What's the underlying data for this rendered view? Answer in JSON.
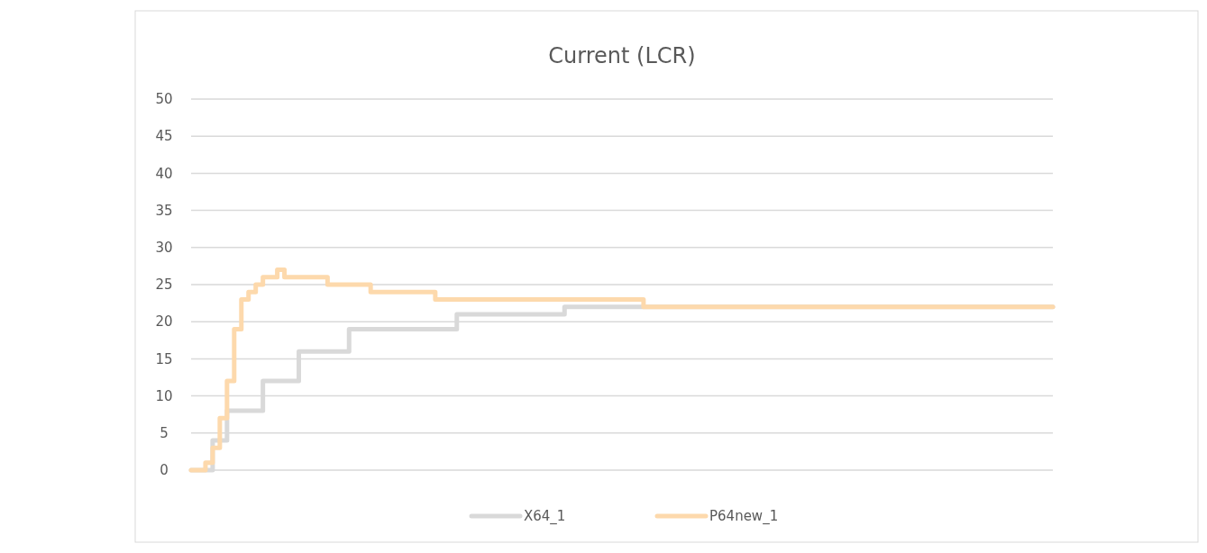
{
  "chart_data": {
    "type": "step",
    "title": "Current (LCR)",
    "categories": [
      null,
      null,
      null,
      null,
      null,
      null,
      null,
      null,
      null,
      null,
      null,
      null,
      null,
      null,
      null,
      null,
      null,
      null,
      null,
      null,
      null,
      null,
      null,
      null,
      null,
      null,
      null,
      null,
      null,
      null,
      null,
      null,
      null,
      null,
      null,
      null,
      null,
      null,
      null,
      null,
      null,
      null,
      null,
      null,
      null,
      null,
      null,
      null,
      null,
      null,
      null,
      null,
      null,
      null,
      null,
      null,
      null,
      null,
      null,
      null,
      null,
      null,
      null,
      null,
      null,
      null,
      null,
      null,
      null,
      null,
      null,
      null,
      null,
      null,
      null,
      null,
      null,
      null,
      null,
      null,
      null,
      null,
      null,
      null,
      null,
      null,
      null,
      null,
      null,
      null,
      null,
      null,
      null,
      null,
      null,
      null,
      null,
      null,
      null,
      null,
      null,
      null,
      null,
      null,
      null,
      null,
      null,
      null,
      null,
      null,
      null,
      null,
      null,
      null,
      null,
      null,
      null,
      null,
      null,
      null,
      null
    ],
    "series": [
      {
        "name": "X64_1",
        "color": "#d9d9d9",
        "values": [
          0,
          0,
          0,
          4,
          4,
          8,
          8,
          8,
          8,
          8,
          12,
          12,
          12,
          12,
          12,
          16,
          16,
          16,
          16,
          16,
          16,
          16,
          19,
          19,
          19,
          19,
          19,
          19,
          19,
          19,
          19,
          19,
          19,
          19,
          19,
          19,
          19,
          21,
          21,
          21,
          21,
          21,
          21,
          21,
          21,
          21,
          21,
          21,
          21,
          21,
          21,
          21,
          22,
          22,
          22,
          22,
          22,
          22,
          22,
          22,
          22,
          22,
          22,
          22,
          22,
          22,
          22,
          22,
          22,
          22,
          22,
          22,
          22,
          22,
          22,
          22,
          22,
          22,
          22,
          22,
          22,
          22,
          22,
          22,
          22,
          22,
          22,
          22,
          22,
          22,
          22,
          22,
          22,
          22,
          22,
          22,
          22,
          22,
          22,
          22,
          22,
          22,
          22,
          22,
          22,
          22,
          22,
          22,
          22,
          22,
          22,
          22,
          22,
          22,
          22,
          22,
          22,
          22,
          22,
          22,
          22
        ]
      },
      {
        "name": "P64new_1",
        "color": "#fdd9ac",
        "values": [
          0,
          0,
          1,
          3,
          7,
          12,
          19,
          23,
          24,
          25,
          26,
          26,
          27,
          26,
          26,
          26,
          26,
          26,
          26,
          25,
          25,
          25,
          25,
          25,
          25,
          24,
          24,
          24,
          24,
          24,
          24,
          24,
          24,
          24,
          23,
          23,
          23,
          23,
          23,
          23,
          23,
          23,
          23,
          23,
          23,
          23,
          23,
          23,
          23,
          23,
          23,
          23,
          23,
          23,
          23,
          23,
          23,
          23,
          23,
          23,
          23,
          23,
          23,
          22,
          22,
          22,
          22,
          22,
          22,
          22,
          22,
          22,
          22,
          22,
          22,
          22,
          22,
          22,
          22,
          22,
          22,
          22,
          22,
          22,
          22,
          22,
          22,
          22,
          22,
          22,
          22,
          22,
          22,
          22,
          22,
          22,
          22,
          22,
          22,
          22,
          22,
          22,
          22,
          22,
          22,
          22,
          22,
          22,
          22,
          22,
          22,
          22,
          22,
          22,
          22,
          22,
          22,
          22,
          22,
          22,
          22
        ]
      }
    ],
    "ylim": [
      0,
      50
    ],
    "yticks": [
      0,
      5,
      10,
      15,
      20,
      25,
      30,
      35,
      40,
      45,
      50
    ],
    "grid": "y",
    "legend": "bottom"
  }
}
